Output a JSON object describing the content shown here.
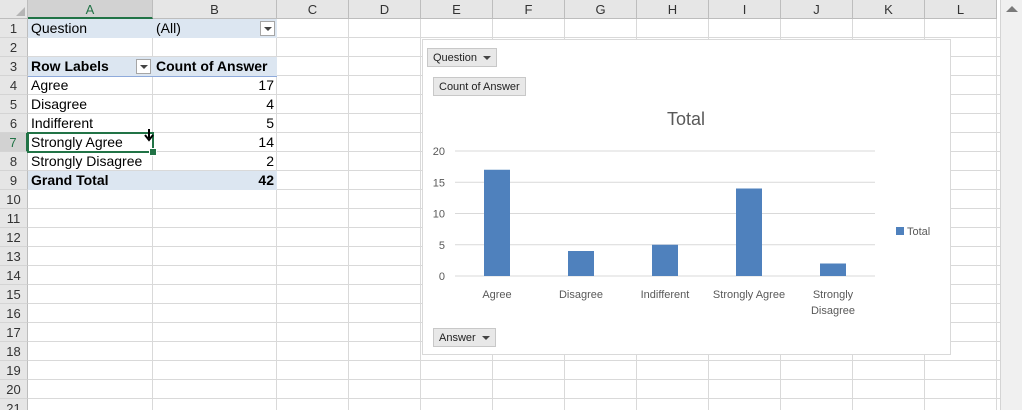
{
  "columns": [
    "A",
    "B",
    "C",
    "D",
    "E",
    "F",
    "G",
    "H",
    "I",
    "J",
    "K",
    "L"
  ],
  "rows": [
    "1",
    "2",
    "3",
    "4",
    "5",
    "6",
    "7",
    "8",
    "9",
    "10",
    "11",
    "12",
    "13",
    "14",
    "15",
    "16",
    "17",
    "18",
    "19",
    "20",
    "21"
  ],
  "pivot": {
    "filter_label": "Question",
    "filter_value": "(All)",
    "row_labels_header": "Row Labels",
    "value_header": "Count of Answer",
    "items": [
      {
        "label": "Agree",
        "count": "17"
      },
      {
        "label": "Disagree",
        "count": "4"
      },
      {
        "label": "Indifferent",
        "count": "5"
      },
      {
        "label": "Strongly Agree",
        "count": "14"
      },
      {
        "label": "Strongly Disagree",
        "count": "2"
      }
    ],
    "grand_total_label": "Grand Total",
    "grand_total_value": "42"
  },
  "chart": {
    "filter_button": "Question",
    "values_button": "Count of Answer",
    "axis_button": "Answer",
    "title": "Total",
    "legend_label": "Total",
    "bar_color": "#4f81bd"
  },
  "chart_data": {
    "type": "bar",
    "title": "Total",
    "categories": [
      "Agree",
      "Disagree",
      "Indifferent",
      "Strongly Agree",
      "Strongly\nDisagree"
    ],
    "series": [
      {
        "name": "Total",
        "values": [
          17,
          4,
          5,
          14,
          2
        ]
      }
    ],
    "ylim": [
      0,
      20
    ],
    "yticks": [
      0,
      5,
      10,
      15,
      20
    ],
    "grid": true,
    "legend": "right"
  }
}
